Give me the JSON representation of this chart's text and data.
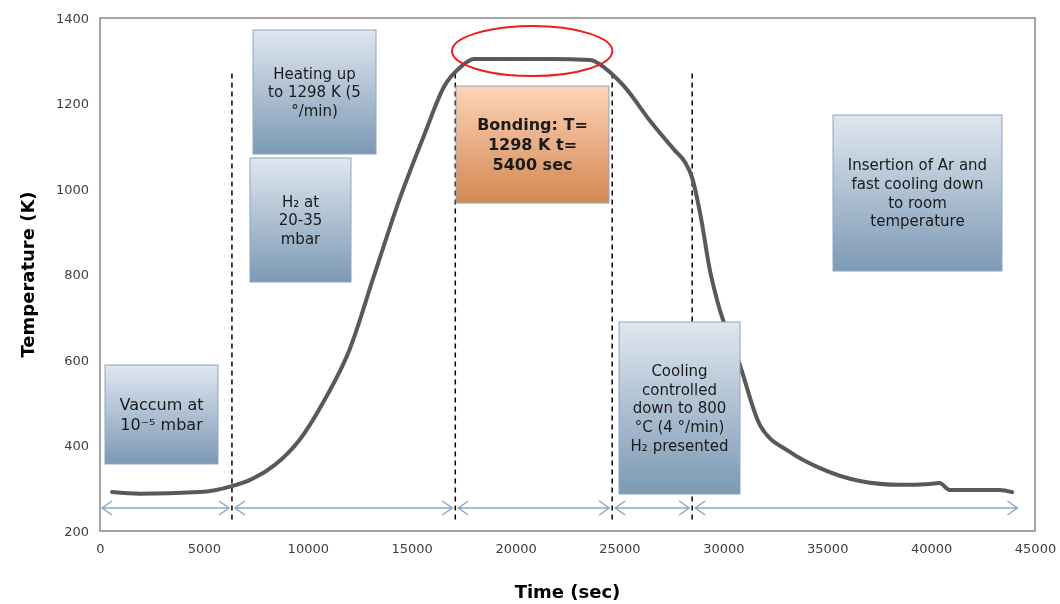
{
  "chart_data": {
    "type": "line",
    "xlabel": "Time (sec)",
    "ylabel": "Temperature (K)",
    "xlim": [
      0,
      45000
    ],
    "ylim": [
      200,
      1400
    ],
    "xticks": [
      0,
      5000,
      10000,
      15000,
      20000,
      25000,
      30000,
      35000,
      40000,
      45000
    ],
    "yticks": [
      200,
      400,
      600,
      800,
      1000,
      1200,
      1400
    ],
    "grid": false,
    "marker": "none",
    "line_style": "solid",
    "series": [
      {
        "color": "#595959",
        "x": [
          580,
          1900,
          4800,
          6350,
          7200,
          8400,
          9600,
          10800,
          12000,
          13200,
          14400,
          15600,
          16600,
          17300,
          18000,
          19250,
          21650,
          23600,
          24300,
          25250,
          26450,
          27650,
          28150,
          28500,
          28900,
          29350,
          29700,
          30800,
          31760,
          33200,
          34650,
          36570,
          38500,
          39950,
          40400,
          40900,
          43300,
          43900
        ],
        "values": [
          291,
          287,
          291,
          305,
          319,
          354,
          413,
          506,
          623,
          799,
          974,
          1126,
          1243,
          1283,
          1304,
          1304,
          1304,
          1302,
          1283,
          1239,
          1161,
          1091,
          1063,
          1026,
          939,
          811,
          740,
          588,
          448,
          385,
          347,
          317,
          308,
          310,
          312,
          296,
          296,
          291
        ]
      }
    ],
    "ref_lines": [
      {
        "axis": "x",
        "value": 6350,
        "color": "#000000",
        "line_style": "dashed"
      },
      {
        "axis": "x",
        "value": 17100,
        "color": "#000000",
        "line_style": "dashed"
      },
      {
        "axis": "x",
        "value": 24650,
        "color": "#000000",
        "line_style": "dashed"
      },
      {
        "axis": "x",
        "value": 28500,
        "color": "#000000",
        "line_style": "dashed"
      }
    ],
    "annotations": [
      "Vaccum at 10⁻⁵ mbar",
      "Heating up to 1298 K (5 °/min)",
      "H₂ at 20-35 mbar",
      "Bonding: T= 1298 K t= 5400 sec",
      "Cooling controlled down to 800 °C (4 °/min) H₂ presented",
      "Insertion of Ar and fast cooling down to room temperature"
    ]
  }
}
